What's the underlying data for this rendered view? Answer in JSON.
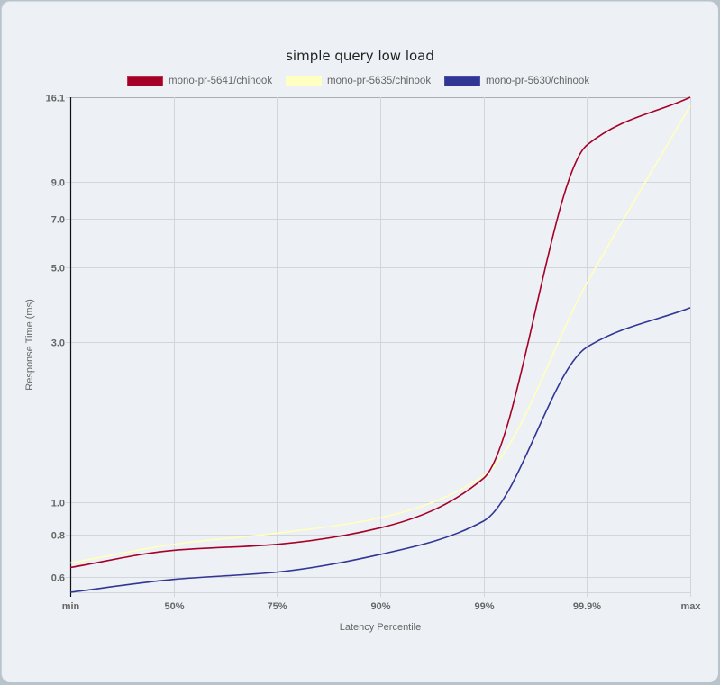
{
  "title": "simple query low load",
  "legend": [
    {
      "label": "mono-pr-5641/chinook",
      "color": "#a50026"
    },
    {
      "label": "mono-pr-5635/chinook",
      "color": "#ffffbf"
    },
    {
      "label": "mono-pr-5630/chinook",
      "color": "#313695"
    }
  ],
  "axes": {
    "xlabel": "Latency Percentile",
    "ylabel": "Response Time (ms)"
  },
  "chart_data": {
    "type": "line",
    "title": "simple query low load",
    "xlabel": "Latency Percentile",
    "ylabel": "Response Time (ms)",
    "categories": [
      "min",
      "50%",
      "75%",
      "90%",
      "99%",
      "99.9%",
      "max"
    ],
    "yscale": "log",
    "ylim": [
      0.54,
      16.1
    ],
    "yticks": [
      16.1,
      9.0,
      7.0,
      5.0,
      3.0,
      1.0,
      0.8,
      0.6
    ],
    "grid": true,
    "legend_position": "top",
    "series": [
      {
        "name": "mono-pr-5641/chinook",
        "color": "#a50026",
        "values": [
          0.64,
          0.72,
          0.75,
          0.84,
          1.18,
          11.6,
          16.1
        ]
      },
      {
        "name": "mono-pr-5635/chinook",
        "color": "#ffffbf",
        "values": [
          0.66,
          0.75,
          0.81,
          0.9,
          1.2,
          4.5,
          15.2
        ]
      },
      {
        "name": "mono-pr-5630/chinook",
        "color": "#313695",
        "values": [
          0.54,
          0.59,
          0.62,
          0.7,
          0.88,
          2.9,
          3.8
        ]
      }
    ]
  }
}
